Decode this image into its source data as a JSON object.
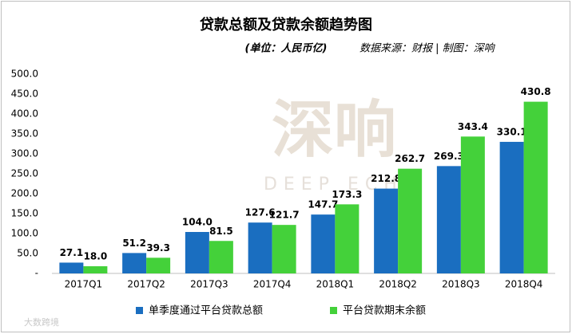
{
  "chart_data": {
    "type": "bar",
    "title": "贷款总额及贷款余额趋势图",
    "subtitle": "(单位：人民币亿)",
    "source": "数据来源：财报 | 制图：深响",
    "watermarks": [
      "深响",
      "DEEP ECHO",
      "大数跨境"
    ],
    "categories": [
      "2017Q1",
      "2017Q2",
      "2017Q3",
      "2017Q4",
      "2018Q1",
      "2018Q2",
      "2018Q3",
      "2018Q4"
    ],
    "series": [
      {
        "name": "单季度通过平台贷款总额",
        "color": "#1a6ec0",
        "values": [
          27.1,
          51.2,
          104.0,
          127.6,
          147.7,
          212.8,
          269.3,
          330.1
        ],
        "value_labels": [
          "27.1",
          "51.2",
          "104.0",
          "127.6",
          "147.7",
          "212.8",
          "269.3",
          "330.1"
        ]
      },
      {
        "name": "平台贷款期末余额",
        "color": "#44d13a",
        "values": [
          18.0,
          39.3,
          81.5,
          121.7,
          173.3,
          262.7,
          343.4,
          430.8
        ],
        "value_labels": [
          "18.0",
          "39.3",
          "81.5",
          "121.7",
          "173.3",
          "262.7",
          "343.4",
          "430.8"
        ]
      }
    ],
    "ylim": [
      0,
      500
    ],
    "yticks": [
      {
        "value": 0,
        "label": "-"
      },
      {
        "value": 50,
        "label": "50.0"
      },
      {
        "value": 100,
        "label": "100.0"
      },
      {
        "value": 150,
        "label": "150.0"
      },
      {
        "value": 200,
        "label": "200.0"
      },
      {
        "value": 250,
        "label": "250.0"
      },
      {
        "value": 300,
        "label": "300.0"
      },
      {
        "value": 350,
        "label": "350.0"
      },
      {
        "value": 400,
        "label": "400.0"
      },
      {
        "value": 450,
        "label": "450.0"
      },
      {
        "value": 500,
        "label": "500.0"
      }
    ],
    "grid": false,
    "legend": "bottom"
  }
}
